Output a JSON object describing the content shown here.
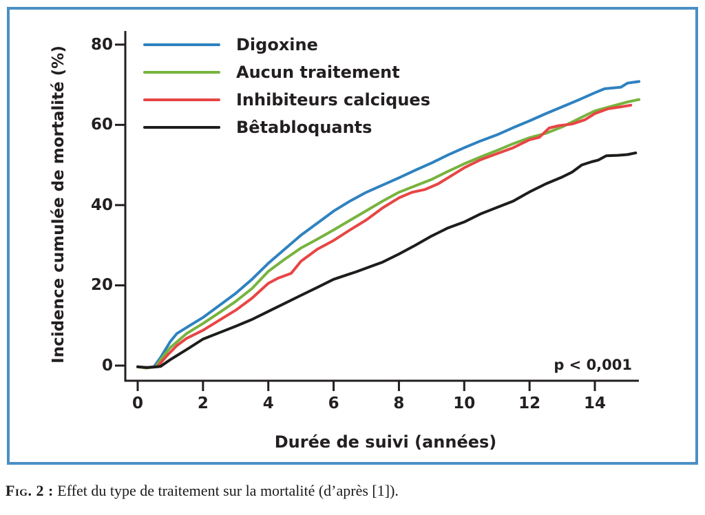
{
  "figure": {
    "border_color": "#4a8fc4",
    "caption": {
      "label": "Fig. 2 :",
      "text": " Effet du type de traitement sur la mortalité (d’après [1])."
    }
  },
  "chart_data": {
    "type": "line",
    "title": "",
    "xlabel": "Durée de suivi (années)",
    "ylabel": "Incidence cumulée de mortalité (%)",
    "annotation": "p < 0,001",
    "xlim": [
      0,
      15.5
    ],
    "ylim": [
      0,
      80
    ],
    "x_ticks": [
      "0",
      "2",
      "4",
      "6",
      "8",
      "10",
      "12",
      "14"
    ],
    "x_tick_values": [
      0,
      2,
      4,
      6,
      8,
      10,
      12,
      14
    ],
    "y_ticks": [
      "0",
      "20",
      "40",
      "60",
      "80"
    ],
    "y_tick_values": [
      0,
      20,
      40,
      60,
      80
    ],
    "grid": false,
    "legend_position": "top-left-inside",
    "axis_color": "#231f20",
    "series": [
      {
        "name": "Digoxine",
        "color": "#2e82c0",
        "points": [
          [
            0,
            -0.3
          ],
          [
            0.25,
            -0.5
          ],
          [
            0.5,
            -0.3
          ],
          [
            0.7,
            2
          ],
          [
            1,
            6
          ],
          [
            1.2,
            8
          ],
          [
            1.6,
            10
          ],
          [
            2,
            12
          ],
          [
            2.5,
            15
          ],
          [
            3,
            18
          ],
          [
            3.5,
            21.5
          ],
          [
            4,
            25.5
          ],
          [
            4.5,
            29
          ],
          [
            5,
            32.5
          ],
          [
            5.5,
            35.5
          ],
          [
            6,
            38.5
          ],
          [
            6.5,
            41
          ],
          [
            7,
            43.2
          ],
          [
            7.5,
            45
          ],
          [
            8,
            46.8
          ],
          [
            8.5,
            48.7
          ],
          [
            9,
            50.5
          ],
          [
            9.5,
            52.5
          ],
          [
            10,
            54.3
          ],
          [
            10.5,
            56
          ],
          [
            11,
            57.5
          ],
          [
            11.5,
            59.3
          ],
          [
            12,
            61
          ],
          [
            12.5,
            62.8
          ],
          [
            13,
            64.5
          ],
          [
            13.5,
            66.2
          ],
          [
            14,
            68
          ],
          [
            14.3,
            69
          ],
          [
            14.8,
            69.4
          ],
          [
            15,
            70.4
          ],
          [
            15.35,
            70.8
          ]
        ]
      },
      {
        "name": "Aucun traitement",
        "color": "#78b33e",
        "points": [
          [
            0,
            -0.3
          ],
          [
            0.25,
            -0.6
          ],
          [
            0.55,
            -0.3
          ],
          [
            0.8,
            2.5
          ],
          [
            1,
            4.5
          ],
          [
            1.5,
            8
          ],
          [
            2,
            10.5
          ],
          [
            2.5,
            13.2
          ],
          [
            3,
            16
          ],
          [
            3.5,
            19.2
          ],
          [
            4,
            23.5
          ],
          [
            4.5,
            26.5
          ],
          [
            5,
            29.3
          ],
          [
            5.5,
            31.5
          ],
          [
            6,
            33.8
          ],
          [
            6.5,
            36.2
          ],
          [
            7,
            38.6
          ],
          [
            7.5,
            41
          ],
          [
            8,
            43.2
          ],
          [
            8.5,
            44.8
          ],
          [
            9,
            46.4
          ],
          [
            9.5,
            48.4
          ],
          [
            10,
            50.3
          ],
          [
            10.5,
            52
          ],
          [
            11,
            53.6
          ],
          [
            11.5,
            55.3
          ],
          [
            12,
            56.8
          ],
          [
            12.5,
            57.9
          ],
          [
            13,
            59.5
          ],
          [
            13.5,
            61.5
          ],
          [
            14,
            63.5
          ],
          [
            14.5,
            64.6
          ],
          [
            15,
            65.7
          ],
          [
            15.35,
            66.3
          ]
        ]
      },
      {
        "name": "Inhibiteurs calciques",
        "color": "#e84545",
        "points": [
          [
            0,
            -0.3
          ],
          [
            0.25,
            -0.5
          ],
          [
            0.6,
            -0.3
          ],
          [
            0.9,
            2.5
          ],
          [
            1.2,
            5
          ],
          [
            1.5,
            6.8
          ],
          [
            2,
            8.8
          ],
          [
            2.5,
            11.3
          ],
          [
            3,
            13.8
          ],
          [
            3.5,
            16.8
          ],
          [
            4,
            20.5
          ],
          [
            4.3,
            21.8
          ],
          [
            4.7,
            23
          ],
          [
            5,
            26
          ],
          [
            5.5,
            29
          ],
          [
            6,
            31.2
          ],
          [
            6.5,
            33.8
          ],
          [
            7,
            36.3
          ],
          [
            7.5,
            39.3
          ],
          [
            8,
            41.8
          ],
          [
            8.4,
            43.2
          ],
          [
            8.8,
            43.9
          ],
          [
            9.2,
            45.3
          ],
          [
            9.5,
            46.8
          ],
          [
            10,
            49.3
          ],
          [
            10.5,
            51.3
          ],
          [
            11,
            52.8
          ],
          [
            11.5,
            54.3
          ],
          [
            12,
            56.3
          ],
          [
            12.3,
            56.9
          ],
          [
            12.6,
            59.2
          ],
          [
            12.9,
            59.8
          ],
          [
            13.3,
            60.2
          ],
          [
            13.7,
            61.3
          ],
          [
            14,
            62.8
          ],
          [
            14.4,
            64
          ],
          [
            14.8,
            64.5
          ],
          [
            15.1,
            64.9
          ]
        ]
      },
      {
        "name": "Bêtabloquants",
        "color": "#1d1d1b",
        "points": [
          [
            0,
            -0.3
          ],
          [
            0.3,
            -0.5
          ],
          [
            0.7,
            -0.2
          ],
          [
            1,
            1.5
          ],
          [
            1.5,
            4
          ],
          [
            2,
            6.6
          ],
          [
            2.5,
            8.2
          ],
          [
            3,
            9.8
          ],
          [
            3.5,
            11.5
          ],
          [
            4,
            13.5
          ],
          [
            4.5,
            15.5
          ],
          [
            5,
            17.5
          ],
          [
            5.5,
            19.5
          ],
          [
            6,
            21.5
          ],
          [
            6.4,
            22.6
          ],
          [
            6.7,
            23.4
          ],
          [
            7,
            24.3
          ],
          [
            7.5,
            25.8
          ],
          [
            8,
            27.8
          ],
          [
            8.5,
            30
          ],
          [
            9,
            32.3
          ],
          [
            9.5,
            34.3
          ],
          [
            10,
            35.8
          ],
          [
            10.5,
            37.8
          ],
          [
            11,
            39.4
          ],
          [
            11.5,
            41
          ],
          [
            12,
            43.3
          ],
          [
            12.5,
            45.3
          ],
          [
            13,
            47
          ],
          [
            13.3,
            48.2
          ],
          [
            13.6,
            50
          ],
          [
            13.9,
            50.8
          ],
          [
            14.1,
            51.2
          ],
          [
            14.35,
            52.3
          ],
          [
            14.7,
            52.4
          ],
          [
            15,
            52.6
          ],
          [
            15.25,
            53
          ]
        ]
      }
    ]
  }
}
